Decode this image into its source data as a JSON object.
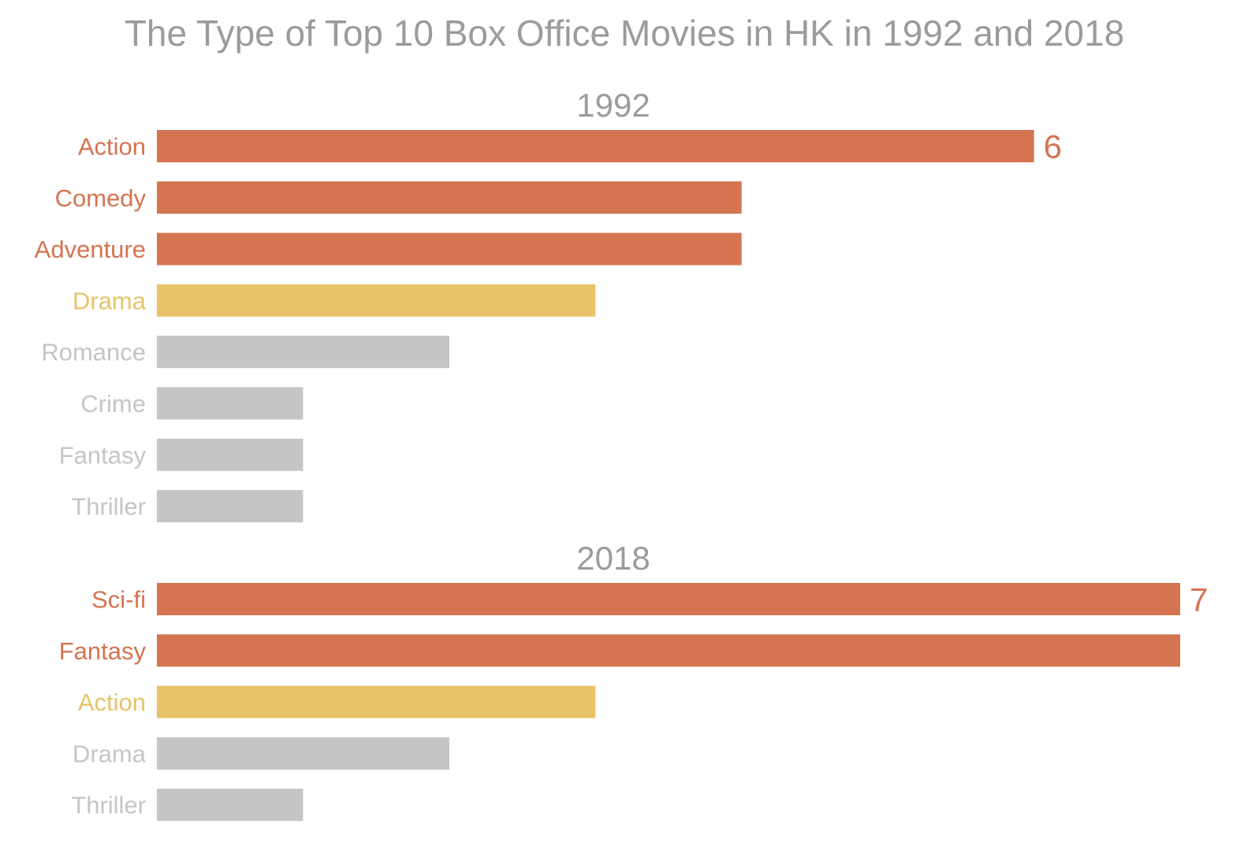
{
  "chart_data": {
    "type": "bar",
    "orientation": "horizontal",
    "title": "The Type of Top 10 Box Office Movies in HK in 1992 and 2018",
    "colors": {
      "title": "#9b9b9b",
      "panel_title": "#9b9b9b",
      "high": "#d47450",
      "mid": "#e8c267",
      "low": "#c4c5c7"
    },
    "panels": [
      {
        "title": "1992",
        "categories": [
          "Action",
          "Comedy",
          "Adventure",
          "Drama",
          "Romance",
          "Crime",
          "Fantasy",
          "Thriller"
        ],
        "values": [
          6,
          4,
          4,
          3,
          2,
          1,
          1,
          1
        ],
        "levels": [
          "high",
          "high",
          "high",
          "mid",
          "low",
          "low",
          "low",
          "low"
        ],
        "data_labels": [
          "6",
          "",
          "",
          "",
          "",
          "",
          "",
          ""
        ]
      },
      {
        "title": "2018",
        "categories": [
          "Sci-fi",
          "Fantasy",
          "Action",
          "Drama",
          "Thriller"
        ],
        "values": [
          7,
          7,
          3,
          2,
          1
        ],
        "levels": [
          "high",
          "high",
          "mid",
          "low",
          "low"
        ],
        "data_labels": [
          "7",
          "",
          "",
          "",
          ""
        ]
      }
    ],
    "xlim": [
      0,
      7
    ],
    "grid": false,
    "legend": "none"
  }
}
